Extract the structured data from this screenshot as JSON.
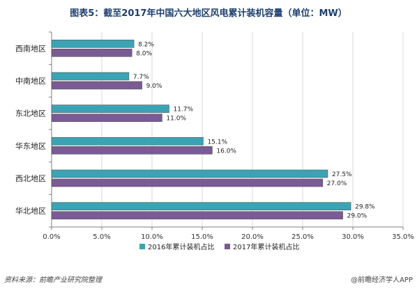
{
  "title": "图表5：截至2017年中国六大地区风电累计装机容量（单位：MW）",
  "source": "资料来源：前瞻产业研究院整理",
  "brand": "@前瞻经济学人APP",
  "colors": {
    "series2016": "#3aa4b5",
    "series2017": "#7a5b96",
    "grid": "#d9d9d9",
    "axis": "#7f7f7f"
  },
  "chart_data": {
    "type": "bar",
    "orientation": "horizontal",
    "categories": [
      "西南地区",
      "中南地区",
      "东北地区",
      "华东地区",
      "西北地区",
      "华北地区"
    ],
    "series": [
      {
        "name": "2016年累计装机占比",
        "values": [
          8.2,
          7.7,
          11.7,
          15.1,
          27.5,
          29.8
        ],
        "labels": [
          "8.2%",
          "7.7%",
          "11.7%",
          "15.1%",
          "27.5%",
          "29.8%"
        ]
      },
      {
        "name": "2017年累计装机占比",
        "values": [
          8.0,
          9.0,
          11.0,
          16.0,
          27.0,
          29.0
        ],
        "labels": [
          "8.0%",
          "9.0%",
          "11.0%",
          "16.0%",
          "27.0%",
          "29.0%"
        ]
      }
    ],
    "xlim": [
      0,
      35
    ],
    "xticks": [
      0,
      5,
      10,
      15,
      20,
      25,
      30,
      35
    ],
    "xtick_labels": [
      "0.0%",
      "5.0%",
      "10.0%",
      "15.0%",
      "20.0%",
      "25.0%",
      "30.0%",
      "35.0%"
    ],
    "grid": true,
    "legend": "bottom"
  }
}
